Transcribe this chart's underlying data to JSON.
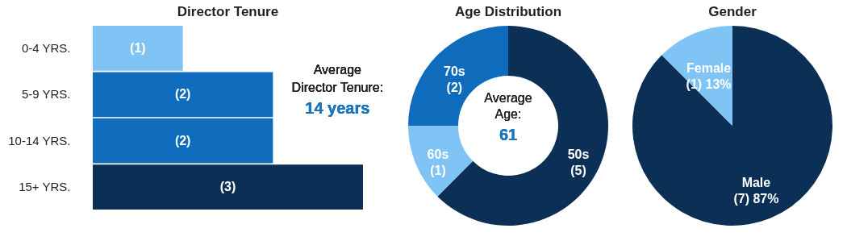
{
  "chart_data": [
    {
      "type": "bar",
      "orientation": "horizontal",
      "title": "Director Tenure",
      "categories": [
        "0-4 YRS.",
        "5-9 YRS.",
        "10-14 YRS.",
        "15+ YRS."
      ],
      "values": [
        1,
        2,
        2,
        3
      ],
      "colors": [
        "#7fc4f4",
        "#0f6cbd",
        "#0f6cbd",
        "#0b2f55"
      ],
      "value_labels": [
        "(1)",
        "(2)",
        "(2)",
        "(3)"
      ],
      "tick_labels": "y",
      "annotations": [
        "Average Director Tenure:",
        "14 years"
      ]
    },
    {
      "type": "donut",
      "title": "Age Distribution",
      "categories": [
        "50s",
        "60s",
        "70s"
      ],
      "values": [
        5,
        1,
        2
      ],
      "colors": [
        "#0b2f55",
        "#7fc4f4",
        "#0f6cbd"
      ],
      "value_labels": [
        "(5)",
        "(1)",
        "(2)"
      ],
      "annotations": [
        "Average Age:",
        "61"
      ]
    },
    {
      "type": "pie",
      "title": "Gender",
      "categories": [
        "Male",
        "Female"
      ],
      "values": [
        7,
        1
      ],
      "colors": [
        "#0b2f55",
        "#7fc4f4"
      ],
      "value_labels": [
        "(7) 87%",
        "(1) 13%"
      ]
    }
  ]
}
